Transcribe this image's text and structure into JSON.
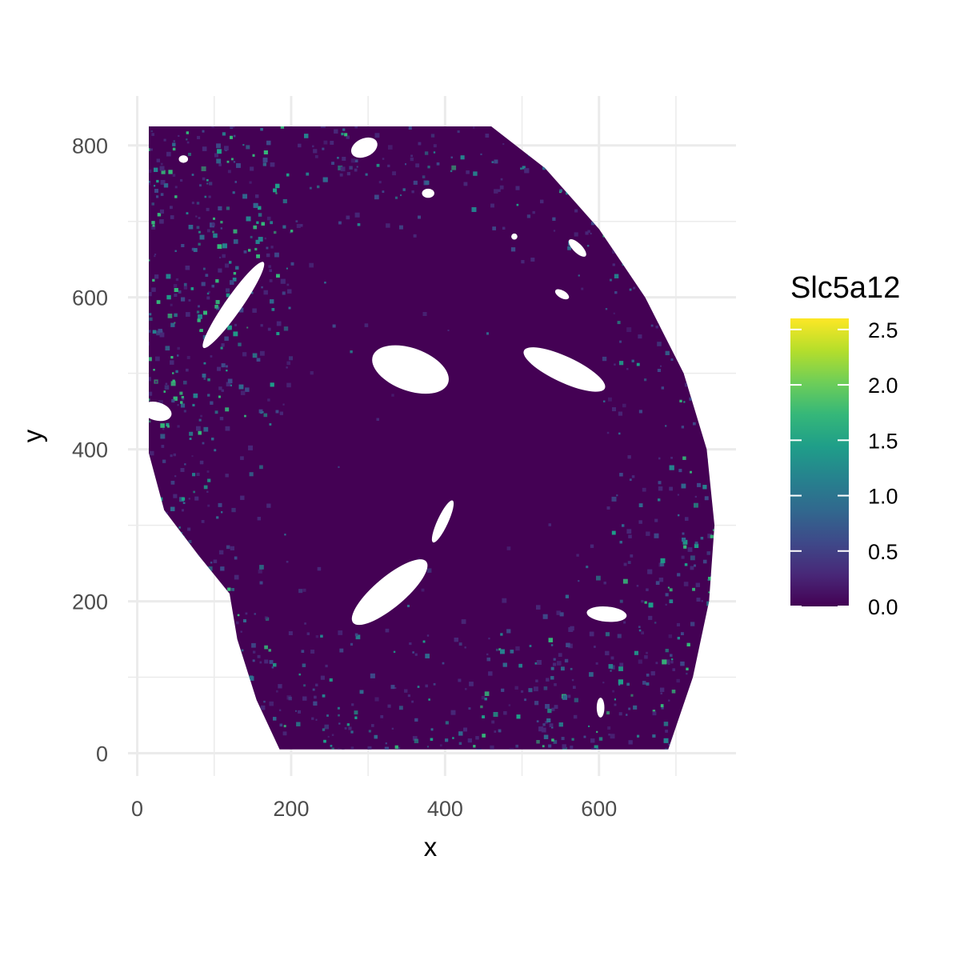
{
  "chart_data": {
    "type": "heatmap",
    "title": "",
    "xlabel": "x",
    "ylabel": "y",
    "xlim": [
      -12,
      778
    ],
    "ylim": [
      -30,
      865
    ],
    "x_ticks": [
      0,
      200,
      400,
      600
    ],
    "y_ticks": [
      0,
      200,
      400,
      600,
      800
    ],
    "x_tick_labels": [
      "0",
      "200",
      "400",
      "600"
    ],
    "y_tick_labels": [
      "0",
      "200",
      "400",
      "600",
      "800"
    ],
    "grid": true,
    "legend": {
      "title": "Slc5a12",
      "position": "right",
      "range": [
        0,
        2.6
      ],
      "ticks": [
        0.0,
        0.5,
        1.0,
        1.5,
        2.0,
        2.5
      ],
      "tick_labels": [
        "0.0",
        "0.5",
        "1.0",
        "1.5",
        "2.0",
        "2.5"
      ],
      "colormap": "viridis"
    },
    "colors": {
      "viridis": [
        "#440154",
        "#482878",
        "#3e4989",
        "#31688e",
        "#26828e",
        "#1f9e89",
        "#35b779",
        "#6ece58",
        "#b5de2b",
        "#fde725"
      ],
      "background_tissue": "#440154",
      "grid": "#ebebeb"
    },
    "tissue_outline": [
      [
        15,
        825
      ],
      [
        460,
        825
      ],
      [
        530,
        770
      ],
      [
        600,
        690
      ],
      [
        660,
        600
      ],
      [
        710,
        500
      ],
      [
        740,
        400
      ],
      [
        750,
        300
      ],
      [
        743,
        200
      ],
      [
        722,
        100
      ],
      [
        690,
        5
      ],
      [
        185,
        5
      ],
      [
        155,
        70
      ],
      [
        130,
        150
      ],
      [
        120,
        210
      ],
      [
        80,
        260
      ],
      [
        35,
        320
      ],
      [
        15,
        395
      ]
    ],
    "holes": [
      {
        "cx": 328,
        "cy": 212,
        "rx": 62,
        "ry": 20,
        "angle": -40
      },
      {
        "cx": 355,
        "cy": 505,
        "rx": 52,
        "ry": 28,
        "angle": 20
      },
      {
        "cx": 125,
        "cy": 590,
        "rx": 68,
        "ry": 11,
        "angle": -55
      },
      {
        "cx": 555,
        "cy": 505,
        "rx": 58,
        "ry": 17,
        "angle": 25
      },
      {
        "cx": 397,
        "cy": 305,
        "rx": 30,
        "ry": 7,
        "angle": -65
      },
      {
        "cx": 295,
        "cy": 797,
        "rx": 18,
        "ry": 12,
        "angle": -25
      },
      {
        "cx": 378,
        "cy": 737,
        "rx": 8,
        "ry": 6,
        "angle": 0
      },
      {
        "cx": 572,
        "cy": 665,
        "rx": 15,
        "ry": 6,
        "angle": 45
      },
      {
        "cx": 552,
        "cy": 604,
        "rx": 10,
        "ry": 5,
        "angle": 30
      },
      {
        "cx": 490,
        "cy": 680,
        "rx": 4,
        "ry": 4,
        "angle": 0
      },
      {
        "cx": 60,
        "cy": 782,
        "rx": 6,
        "ry": 5,
        "angle": 0
      },
      {
        "cx": 610,
        "cy": 183,
        "rx": 26,
        "ry": 10,
        "angle": 5
      },
      {
        "cx": 602,
        "cy": 60,
        "rx": 5,
        "ry": 13,
        "angle": 0
      },
      {
        "cx": 25,
        "cy": 450,
        "rx": 20,
        "ry": 12,
        "angle": 15
      }
    ]
  }
}
